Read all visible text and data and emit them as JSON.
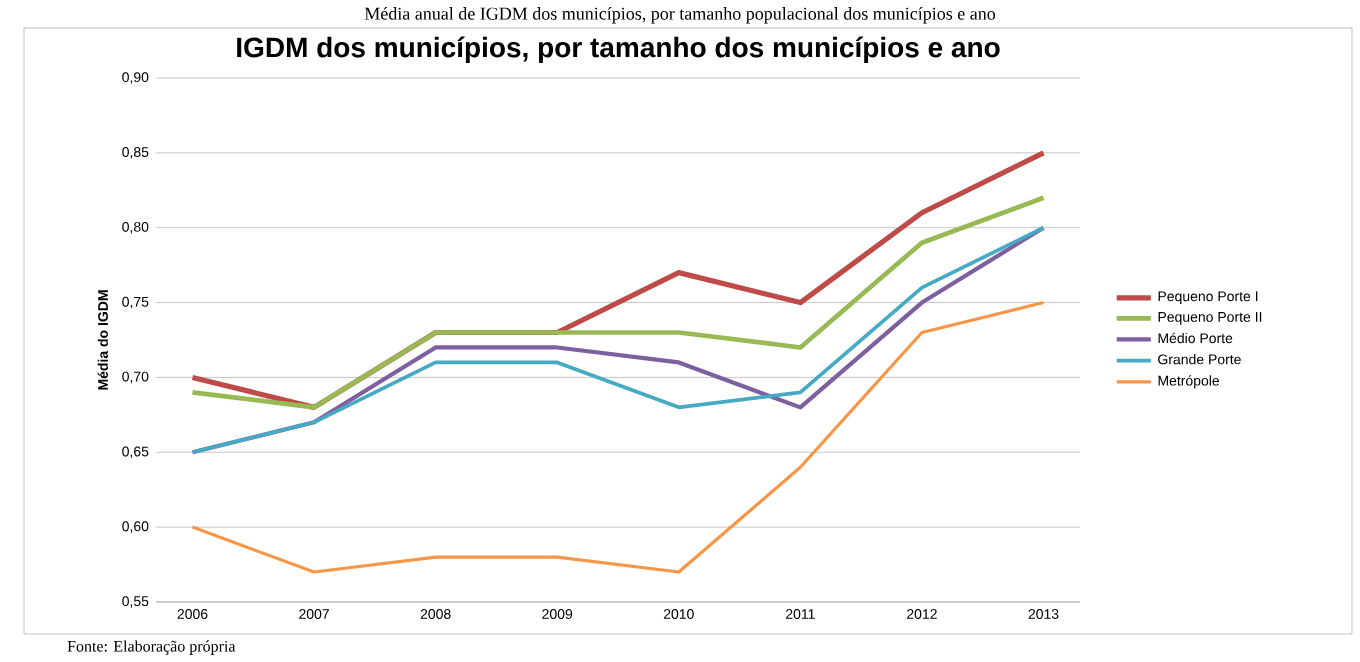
{
  "chart_data": {
    "type": "line",
    "title": "IGDM dos municípios, por tamanho dos municípios e ano",
    "ylabel": "Média do IGDM",
    "categories": [
      "2006",
      "2007",
      "2008",
      "2009",
      "2010",
      "2011",
      "2012",
      "2013"
    ],
    "series": [
      {
        "name": "Pequeno Porte I",
        "color": "#be4b48",
        "values": [
          0.7,
          0.68,
          0.73,
          0.73,
          0.77,
          0.75,
          0.81,
          0.85
        ]
      },
      {
        "name": "Pequeno Porte II",
        "color": "#98b954",
        "values": [
          0.69,
          0.68,
          0.73,
          0.73,
          0.73,
          0.72,
          0.79,
          0.82
        ]
      },
      {
        "name": "Médio Porte",
        "color": "#7d60a0",
        "values": [
          0.65,
          0.67,
          0.72,
          0.72,
          0.71,
          0.68,
          0.75,
          0.8
        ]
      },
      {
        "name": "Grande Porte",
        "color": "#46aac5",
        "values": [
          0.65,
          0.67,
          0.71,
          0.71,
          0.68,
          0.69,
          0.76,
          0.8
        ]
      },
      {
        "name": "Metrópole",
        "color": "#f79646",
        "values": [
          0.6,
          0.57,
          0.58,
          0.58,
          0.57,
          0.64,
          0.73,
          0.75
        ]
      }
    ],
    "ylim": [
      0.55,
      0.9
    ],
    "yticks": [
      {
        "value": 0.55,
        "label": "0,55"
      },
      {
        "value": 0.6,
        "label": "0,60"
      },
      {
        "value": 0.65,
        "label": "0,65"
      },
      {
        "value": 0.7,
        "label": "0,70"
      },
      {
        "value": 0.75,
        "label": "0,75"
      },
      {
        "value": 0.8,
        "label": "0,80"
      },
      {
        "value": 0.85,
        "label": "0,85"
      },
      {
        "value": 0.9,
        "label": "0,90"
      }
    ],
    "grid": "y",
    "legend": "right",
    "marker": "none",
    "line_style": "solid",
    "annotations": [
      "Média anual de IGDM dos municípios, por tamanho populacional dos municípios e ano",
      "Fonte: Elaboração própria"
    ]
  }
}
